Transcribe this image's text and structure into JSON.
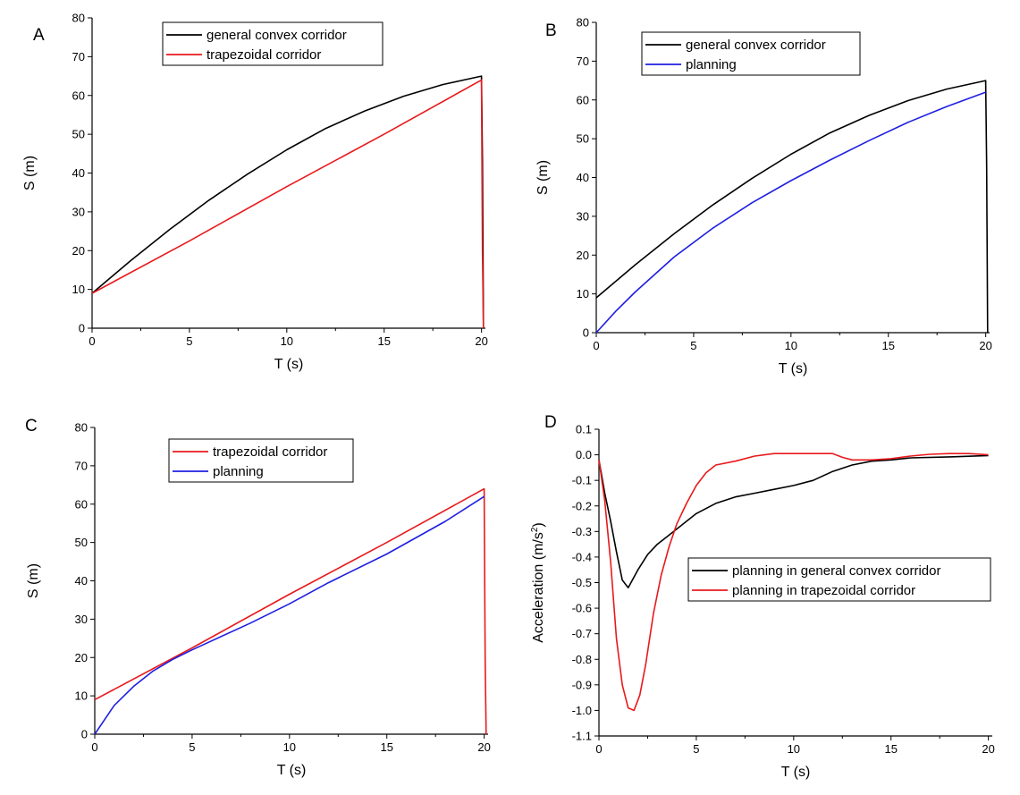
{
  "chart_data": [
    {
      "panel": "A",
      "type": "line",
      "xlabel": "T (s)",
      "ylabel": "S (m)",
      "xlim": [
        0,
        20.2
      ],
      "ylim": [
        0,
        80
      ],
      "xticks": [
        0,
        5,
        10,
        15,
        20
      ],
      "yticks": [
        0,
        10,
        20,
        30,
        40,
        50,
        60,
        70,
        80
      ],
      "legend_position": "top-center",
      "series": [
        {
          "name": "general convex corridor",
          "color": "#000000",
          "x": [
            0,
            2,
            4,
            6,
            8,
            10,
            12,
            14,
            16,
            18,
            20,
            20.05,
            20.1
          ],
          "y": [
            9,
            17.5,
            25.5,
            33,
            39.8,
            46,
            51.5,
            56,
            59.8,
            62.8,
            65,
            43,
            0
          ]
        },
        {
          "name": "trapezoidal corridor",
          "color": "#e8191c",
          "x": [
            0,
            5,
            10,
            15,
            20,
            20.05,
            20.1
          ],
          "y": [
            9,
            22.5,
            36.5,
            50,
            64,
            20,
            0
          ]
        }
      ]
    },
    {
      "panel": "B",
      "type": "line",
      "xlabel": "T (s)",
      "ylabel": "S (m)",
      "xlim": [
        0,
        20.2
      ],
      "ylim": [
        0,
        80
      ],
      "xticks": [
        0,
        5,
        10,
        15,
        20
      ],
      "yticks": [
        0,
        10,
        20,
        30,
        40,
        50,
        60,
        70,
        80
      ],
      "legend_position": "top-left",
      "series": [
        {
          "name": "general convex corridor",
          "color": "#000000",
          "x": [
            0,
            2,
            4,
            6,
            8,
            10,
            12,
            14,
            16,
            18,
            20,
            20.05,
            20.1
          ],
          "y": [
            9,
            17.5,
            25.5,
            33,
            39.8,
            46,
            51.5,
            56,
            59.8,
            62.8,
            65,
            43,
            0
          ]
        },
        {
          "name": "planning",
          "color": "#1f1fe0",
          "x": [
            0,
            1,
            2,
            4,
            6,
            8,
            10,
            12,
            14,
            16,
            18,
            20
          ],
          "y": [
            0,
            5.5,
            10.5,
            19.5,
            27,
            33.5,
            39.2,
            44.5,
            49.5,
            54.2,
            58.3,
            62
          ]
        }
      ]
    },
    {
      "panel": "C",
      "type": "line",
      "xlabel": "T (s)",
      "ylabel": "S (m)",
      "xlim": [
        0,
        20.2
      ],
      "ylim": [
        0,
        80
      ],
      "xticks": [
        0,
        5,
        10,
        15,
        20
      ],
      "yticks": [
        0,
        10,
        20,
        30,
        40,
        50,
        60,
        70,
        80
      ],
      "legend_position": "top-center",
      "series": [
        {
          "name": "trapezoidal corridor",
          "color": "#e8191c",
          "x": [
            0,
            5,
            10,
            15,
            20,
            20.05,
            20.1
          ],
          "y": [
            9,
            22.5,
            36.5,
            50,
            64,
            20,
            0
          ]
        },
        {
          "name": "planning",
          "color": "#1f1fe0",
          "x": [
            0,
            1,
            2,
            3,
            4,
            5,
            8,
            10,
            12,
            15,
            18,
            20
          ],
          "y": [
            0,
            7.5,
            12.5,
            16.5,
            19.5,
            22,
            29,
            34,
            39.5,
            47,
            55.5,
            62
          ]
        }
      ]
    },
    {
      "panel": "D",
      "type": "line",
      "xlabel": "T (s)",
      "ylabel": "Acceleration (m/s",
      "ylabel_sup": "2",
      "ylabel_end": ")",
      "xlim": [
        0,
        20.2
      ],
      "ylim": [
        -1.1,
        0.1
      ],
      "xticks": [
        0,
        5,
        10,
        15,
        20
      ],
      "yticks": [
        -1.1,
        -1.0,
        -0.9,
        -0.8,
        -0.7,
        -0.6,
        -0.5,
        -0.4,
        -0.3,
        -0.2,
        -0.1,
        0.0,
        0.1
      ],
      "ytick_labels": [
        "-1.1",
        "-1.0",
        "-0.9",
        "-0.8",
        "-0.7",
        "-0.6",
        "-0.5",
        "-0.4",
        "-0.3",
        "-0.2",
        "-0.1",
        "0.0",
        "0.1"
      ],
      "legend_position": "center-right",
      "series": [
        {
          "name": "planning in general convex corridor",
          "color": "#000000",
          "x": [
            0,
            0.3,
            0.6,
            0.9,
            1.2,
            1.5,
            2,
            2.5,
            3,
            3.5,
            4,
            5,
            6,
            7,
            8,
            9,
            10,
            11,
            12,
            13,
            14,
            15,
            16,
            18,
            20
          ],
          "y": [
            -0.02,
            -0.15,
            -0.26,
            -0.38,
            -0.49,
            -0.52,
            -0.45,
            -0.39,
            -0.35,
            -0.32,
            -0.29,
            -0.23,
            -0.19,
            -0.165,
            -0.15,
            -0.135,
            -0.12,
            -0.1,
            -0.065,
            -0.04,
            -0.025,
            -0.02,
            -0.012,
            -0.008,
            -0.003
          ]
        },
        {
          "name": "planning in trapezoidal corridor",
          "color": "#e8191c",
          "x": [
            0,
            0.3,
            0.6,
            0.9,
            1.2,
            1.5,
            1.8,
            2.1,
            2.4,
            2.8,
            3.2,
            3.6,
            4,
            4.5,
            5,
            5.5,
            6,
            7,
            8,
            9,
            10,
            11,
            12,
            12.5,
            13,
            14,
            15,
            16,
            17,
            18,
            19,
            20
          ],
          "y": [
            -0.02,
            -0.18,
            -0.42,
            -0.72,
            -0.9,
            -0.99,
            -1.0,
            -0.94,
            -0.82,
            -0.62,
            -0.47,
            -0.36,
            -0.27,
            -0.19,
            -0.12,
            -0.07,
            -0.04,
            -0.025,
            -0.005,
            0.005,
            0.005,
            0.005,
            0.005,
            -0.01,
            -0.02,
            -0.02,
            -0.015,
            -0.005,
            0.002,
            0.005,
            0.005,
            0.0
          ]
        }
      ]
    }
  ]
}
